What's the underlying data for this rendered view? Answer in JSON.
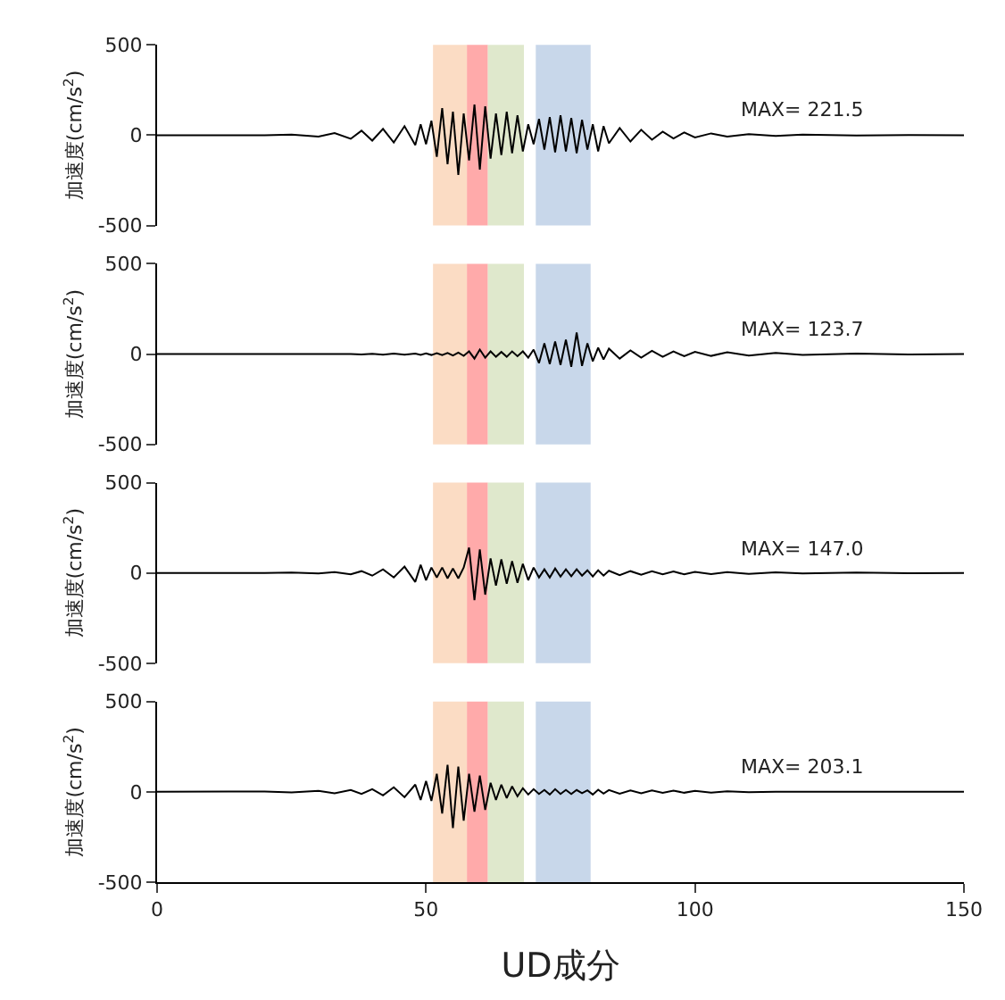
{
  "chart_data": [
    {
      "type": "line",
      "ylabel": "加速度(cm/s$^{2}$)",
      "annotations": [
        "MAX= 221.5"
      ],
      "x": [
        0,
        20,
        25,
        30,
        33,
        36,
        38,
        40,
        42,
        44,
        46,
        48,
        49,
        50,
        51,
        52,
        53,
        54,
        55,
        56,
        57,
        58,
        59,
        60,
        61,
        62,
        63,
        64,
        65,
        66,
        67,
        68,
        69,
        70,
        71,
        72,
        73,
        74,
        75,
        76,
        77,
        78,
        79,
        80,
        81,
        82,
        83,
        84,
        86,
        88,
        90,
        92,
        94,
        96,
        98,
        100,
        103,
        106,
        110,
        115,
        120,
        130,
        140,
        150
      ],
      "series": [
        {
          "color": "#000000",
          "values": [
            0,
            0,
            3,
            -8,
            12,
            -20,
            25,
            -30,
            35,
            -40,
            50,
            -55,
            60,
            -50,
            80,
            -120,
            150,
            -160,
            130,
            -220,
            120,
            -140,
            170,
            -190,
            160,
            -130,
            120,
            -110,
            130,
            -100,
            110,
            -90,
            60,
            -50,
            90,
            -80,
            100,
            -95,
            110,
            -90,
            95,
            -100,
            85,
            -80,
            60,
            -90,
            50,
            -45,
            40,
            -35,
            30,
            -25,
            20,
            -18,
            15,
            -12,
            10,
            -8,
            6,
            -4,
            3,
            -2,
            1,
            0
          ]
        }
      ],
      "xlim": [
        0,
        150
      ],
      "xticks": [
        0,
        50,
        100,
        150
      ],
      "ylim": [
        -500,
        500
      ],
      "yticks": [
        -500,
        0,
        500
      ],
      "tick_labels": "y",
      "grid": false,
      "bands": [
        {
          "axis": "x",
          "from": 51.3,
          "to": 57.6,
          "color": "#fbdcc4"
        },
        {
          "axis": "x",
          "from": 57.6,
          "to": 61.5,
          "color": "#ffaaaa"
        },
        {
          "axis": "x",
          "from": 61.5,
          "to": 68.2,
          "color": "#dfe8cc"
        },
        {
          "axis": "x",
          "from": 70.4,
          "to": 80.6,
          "color": "#c8d7ea"
        }
      ]
    },
    {
      "type": "line",
      "ylabel": "加速度(cm/s$^{2}$)",
      "annotations": [
        "MAX= 123.7"
      ],
      "x": [
        0,
        20,
        25,
        30,
        33,
        36,
        38,
        40,
        42,
        44,
        46,
        48,
        49,
        50,
        51,
        52,
        53,
        54,
        55,
        56,
        57,
        58,
        59,
        60,
        61,
        62,
        63,
        64,
        65,
        66,
        67,
        68,
        69,
        70,
        71,
        72,
        73,
        74,
        75,
        76,
        77,
        78,
        79,
        80,
        81,
        82,
        83,
        84,
        86,
        88,
        90,
        92,
        94,
        96,
        98,
        100,
        103,
        106,
        110,
        115,
        120,
        130,
        140,
        150
      ],
      "series": [
        {
          "color": "#000000",
          "values": [
            0,
            0,
            0,
            0,
            0,
            0,
            -2,
            2,
            -3,
            3,
            -3,
            3,
            -4,
            4,
            -5,
            5,
            -6,
            6,
            -8,
            8,
            -10,
            15,
            -25,
            25,
            -20,
            15,
            -15,
            12,
            -15,
            15,
            -12,
            15,
            -20,
            25,
            -50,
            60,
            -55,
            70,
            -60,
            80,
            -70,
            120,
            -65,
            60,
            -40,
            35,
            -30,
            30,
            -25,
            20,
            -20,
            18,
            -15,
            15,
            -12,
            12,
            -10,
            10,
            -8,
            6,
            -5,
            3,
            -2,
            0
          ]
        }
      ],
      "xlim": [
        0,
        150
      ],
      "xticks": [
        0,
        50,
        100,
        150
      ],
      "ylim": [
        -500,
        500
      ],
      "yticks": [
        -500,
        0,
        500
      ],
      "tick_labels": "y",
      "grid": false,
      "bands": [
        {
          "axis": "x",
          "from": 51.3,
          "to": 57.6,
          "color": "#fbdcc4"
        },
        {
          "axis": "x",
          "from": 57.6,
          "to": 61.5,
          "color": "#ffaaaa"
        },
        {
          "axis": "x",
          "from": 61.5,
          "to": 68.2,
          "color": "#dfe8cc"
        },
        {
          "axis": "x",
          "from": 70.4,
          "to": 80.6,
          "color": "#c8d7ea"
        }
      ]
    },
    {
      "type": "line",
      "ylabel": "加速度(cm/s$^{2}$)",
      "annotations": [
        "MAX= 147.0"
      ],
      "x": [
        0,
        20,
        25,
        30,
        33,
        36,
        38,
        40,
        42,
        44,
        46,
        48,
        49,
        50,
        51,
        52,
        53,
        54,
        55,
        56,
        57,
        58,
        59,
        60,
        61,
        62,
        63,
        64,
        65,
        66,
        67,
        68,
        69,
        70,
        71,
        72,
        73,
        74,
        75,
        76,
        77,
        78,
        79,
        80,
        81,
        82,
        83,
        84,
        86,
        88,
        90,
        92,
        94,
        96,
        98,
        100,
        103,
        106,
        110,
        115,
        120,
        130,
        140,
        150
      ],
      "series": [
        {
          "color": "#000000",
          "values": [
            0,
            0,
            2,
            -3,
            5,
            -8,
            10,
            -15,
            20,
            -25,
            35,
            -50,
            45,
            -40,
            30,
            -25,
            30,
            -30,
            25,
            -30,
            30,
            140,
            -150,
            130,
            -120,
            80,
            -70,
            75,
            -60,
            65,
            -55,
            50,
            -40,
            30,
            -25,
            20,
            -25,
            25,
            -20,
            20,
            -18,
            20,
            -15,
            15,
            -20,
            15,
            -15,
            12,
            -12,
            10,
            -10,
            10,
            -8,
            8,
            -8,
            6,
            -6,
            5,
            -5,
            4,
            -3,
            2,
            -1,
            0
          ]
        }
      ],
      "xlim": [
        0,
        150
      ],
      "xticks": [
        0,
        50,
        100,
        150
      ],
      "ylim": [
        -500,
        500
      ],
      "yticks": [
        -500,
        0,
        500
      ],
      "tick_labels": "y",
      "grid": false,
      "bands": [
        {
          "axis": "x",
          "from": 51.3,
          "to": 57.6,
          "color": "#fbdcc4"
        },
        {
          "axis": "x",
          "from": 57.6,
          "to": 61.5,
          "color": "#ffaaaa"
        },
        {
          "axis": "x",
          "from": 61.5,
          "to": 68.2,
          "color": "#dfe8cc"
        },
        {
          "axis": "x",
          "from": 70.4,
          "to": 80.6,
          "color": "#c8d7ea"
        }
      ]
    },
    {
      "type": "line",
      "ylabel": "加速度(cm/s$^{2}$)",
      "xlabel": "UD成分",
      "annotations": [
        "MAX= 203.1"
      ],
      "x": [
        0,
        20,
        25,
        30,
        33,
        36,
        38,
        40,
        42,
        44,
        46,
        48,
        49,
        50,
        51,
        52,
        53,
        54,
        55,
        56,
        57,
        58,
        59,
        60,
        61,
        62,
        63,
        64,
        65,
        66,
        67,
        68,
        69,
        70,
        71,
        72,
        73,
        74,
        75,
        76,
        77,
        78,
        79,
        80,
        81,
        82,
        83,
        84,
        86,
        88,
        90,
        92,
        94,
        96,
        98,
        100,
        103,
        106,
        110,
        115,
        120,
        130,
        140,
        150
      ],
      "series": [
        {
          "color": "#000000",
          "values": [
            0,
            2,
            -3,
            5,
            -8,
            10,
            -12,
            15,
            -20,
            25,
            -30,
            40,
            -45,
            60,
            -50,
            100,
            -120,
            150,
            -200,
            140,
            -160,
            100,
            -110,
            90,
            -100,
            50,
            -45,
            40,
            -35,
            30,
            -25,
            20,
            -15,
            15,
            -12,
            10,
            -15,
            15,
            -12,
            10,
            -12,
            10,
            -8,
            8,
            -15,
            12,
            -10,
            10,
            -10,
            8,
            -8,
            8,
            -6,
            6,
            -5,
            5,
            -4,
            3,
            -2,
            0,
            0,
            0,
            0,
            0
          ]
        }
      ],
      "xlim": [
        0,
        150
      ],
      "xticks": [
        0,
        50,
        100,
        150
      ],
      "ylim": [
        -500,
        500
      ],
      "yticks": [
        -500,
        0,
        500
      ],
      "grid": false,
      "bands": [
        {
          "axis": "x",
          "from": 51.3,
          "to": 57.6,
          "color": "#fbdcc4"
        },
        {
          "axis": "x",
          "from": 57.6,
          "to": 61.5,
          "color": "#ffaaaa"
        },
        {
          "axis": "x",
          "from": 61.5,
          "to": 68.2,
          "color": "#dfe8cc"
        },
        {
          "axis": "x",
          "from": 70.4,
          "to": 80.6,
          "color": "#c8d7ea"
        }
      ]
    }
  ]
}
